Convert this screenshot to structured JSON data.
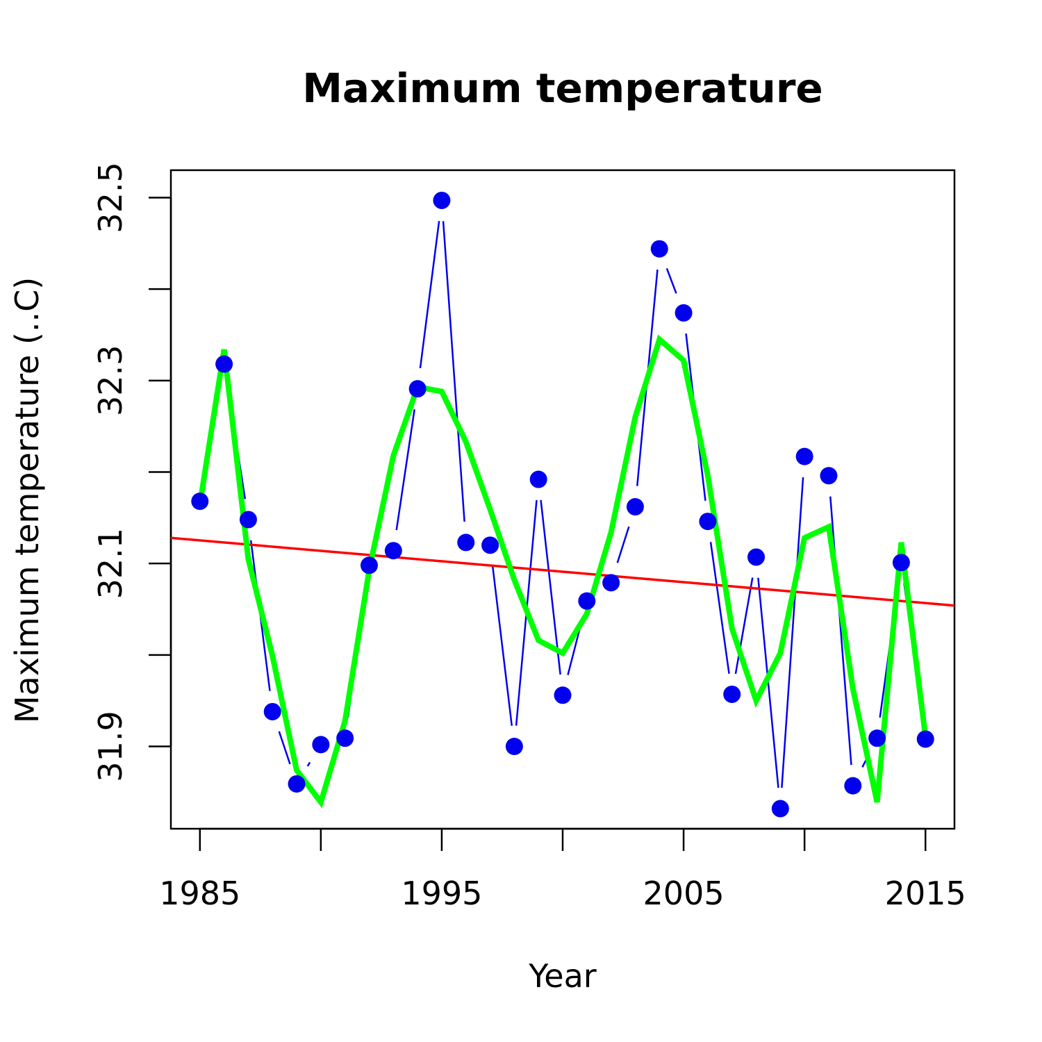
{
  "chart_data": {
    "type": "line",
    "title": "Maximum temperature",
    "xlabel": "Year",
    "ylabel": "Maximum temperature (..C)",
    "xlim": [
      1983.8,
      2016.2
    ],
    "ylim": [
      31.81,
      32.53
    ],
    "x_ticks": [
      1985,
      1990,
      1995,
      2000,
      2005,
      2010,
      2015
    ],
    "x_tick_labels": [
      "1985",
      "1995",
      "2005",
      "2015"
    ],
    "y_ticks": [
      31.9,
      32.0,
      32.1,
      32.2,
      32.3,
      32.4,
      32.5
    ],
    "y_tick_labels": [
      "31.9",
      "32.1",
      "32.3",
      "32.5"
    ],
    "grid": false,
    "legend": "none",
    "series": [
      {
        "style": "points-and-lines",
        "color": "#0000ee",
        "x": [
          1985,
          1986,
          1987,
          1988,
          1989,
          1990,
          1991,
          1992,
          1993,
          1994,
          1995,
          1996,
          1997,
          1998,
          1999,
          2000,
          2001,
          2002,
          2003,
          2004,
          2005,
          2006,
          2007,
          2008,
          2009,
          2010,
          2011,
          2012,
          2013,
          2014,
          2015
        ],
        "values": [
          32.168,
          32.318,
          32.148,
          31.938,
          31.859,
          31.902,
          31.909,
          32.098,
          32.114,
          32.291,
          32.497,
          32.123,
          32.12,
          31.9,
          32.192,
          31.956,
          32.059,
          32.079,
          32.162,
          32.444,
          32.374,
          32.146,
          31.957,
          32.107,
          31.832,
          32.217,
          32.196,
          31.857,
          31.909,
          32.101,
          31.908
        ]
      },
      {
        "style": "line",
        "color": "#00ff00",
        "x": [
          1985,
          1986,
          1987,
          1988,
          1989,
          1990,
          1991,
          1992,
          1993,
          1994,
          1995,
          1996,
          1997,
          1998,
          1999,
          2000,
          2001,
          2002,
          2003,
          2004,
          2005,
          2006,
          2007,
          2008,
          2009,
          2010,
          2011,
          2012,
          2013,
          2014,
          2015
        ],
        "values": [
          32.165,
          32.334,
          32.105,
          31.999,
          31.874,
          31.839,
          31.928,
          32.093,
          32.218,
          32.293,
          32.288,
          32.233,
          32.159,
          32.082,
          32.016,
          32.002,
          32.045,
          32.134,
          32.26,
          32.345,
          32.322,
          32.196,
          32.029,
          31.95,
          32.002,
          32.128,
          32.14,
          31.963,
          31.839,
          32.123,
          31.911
        ]
      },
      {
        "style": "trend-line",
        "color": "#ff0000",
        "x": [
          1983.8,
          2016.2
        ],
        "values": [
          32.128,
          32.054
        ]
      }
    ]
  }
}
